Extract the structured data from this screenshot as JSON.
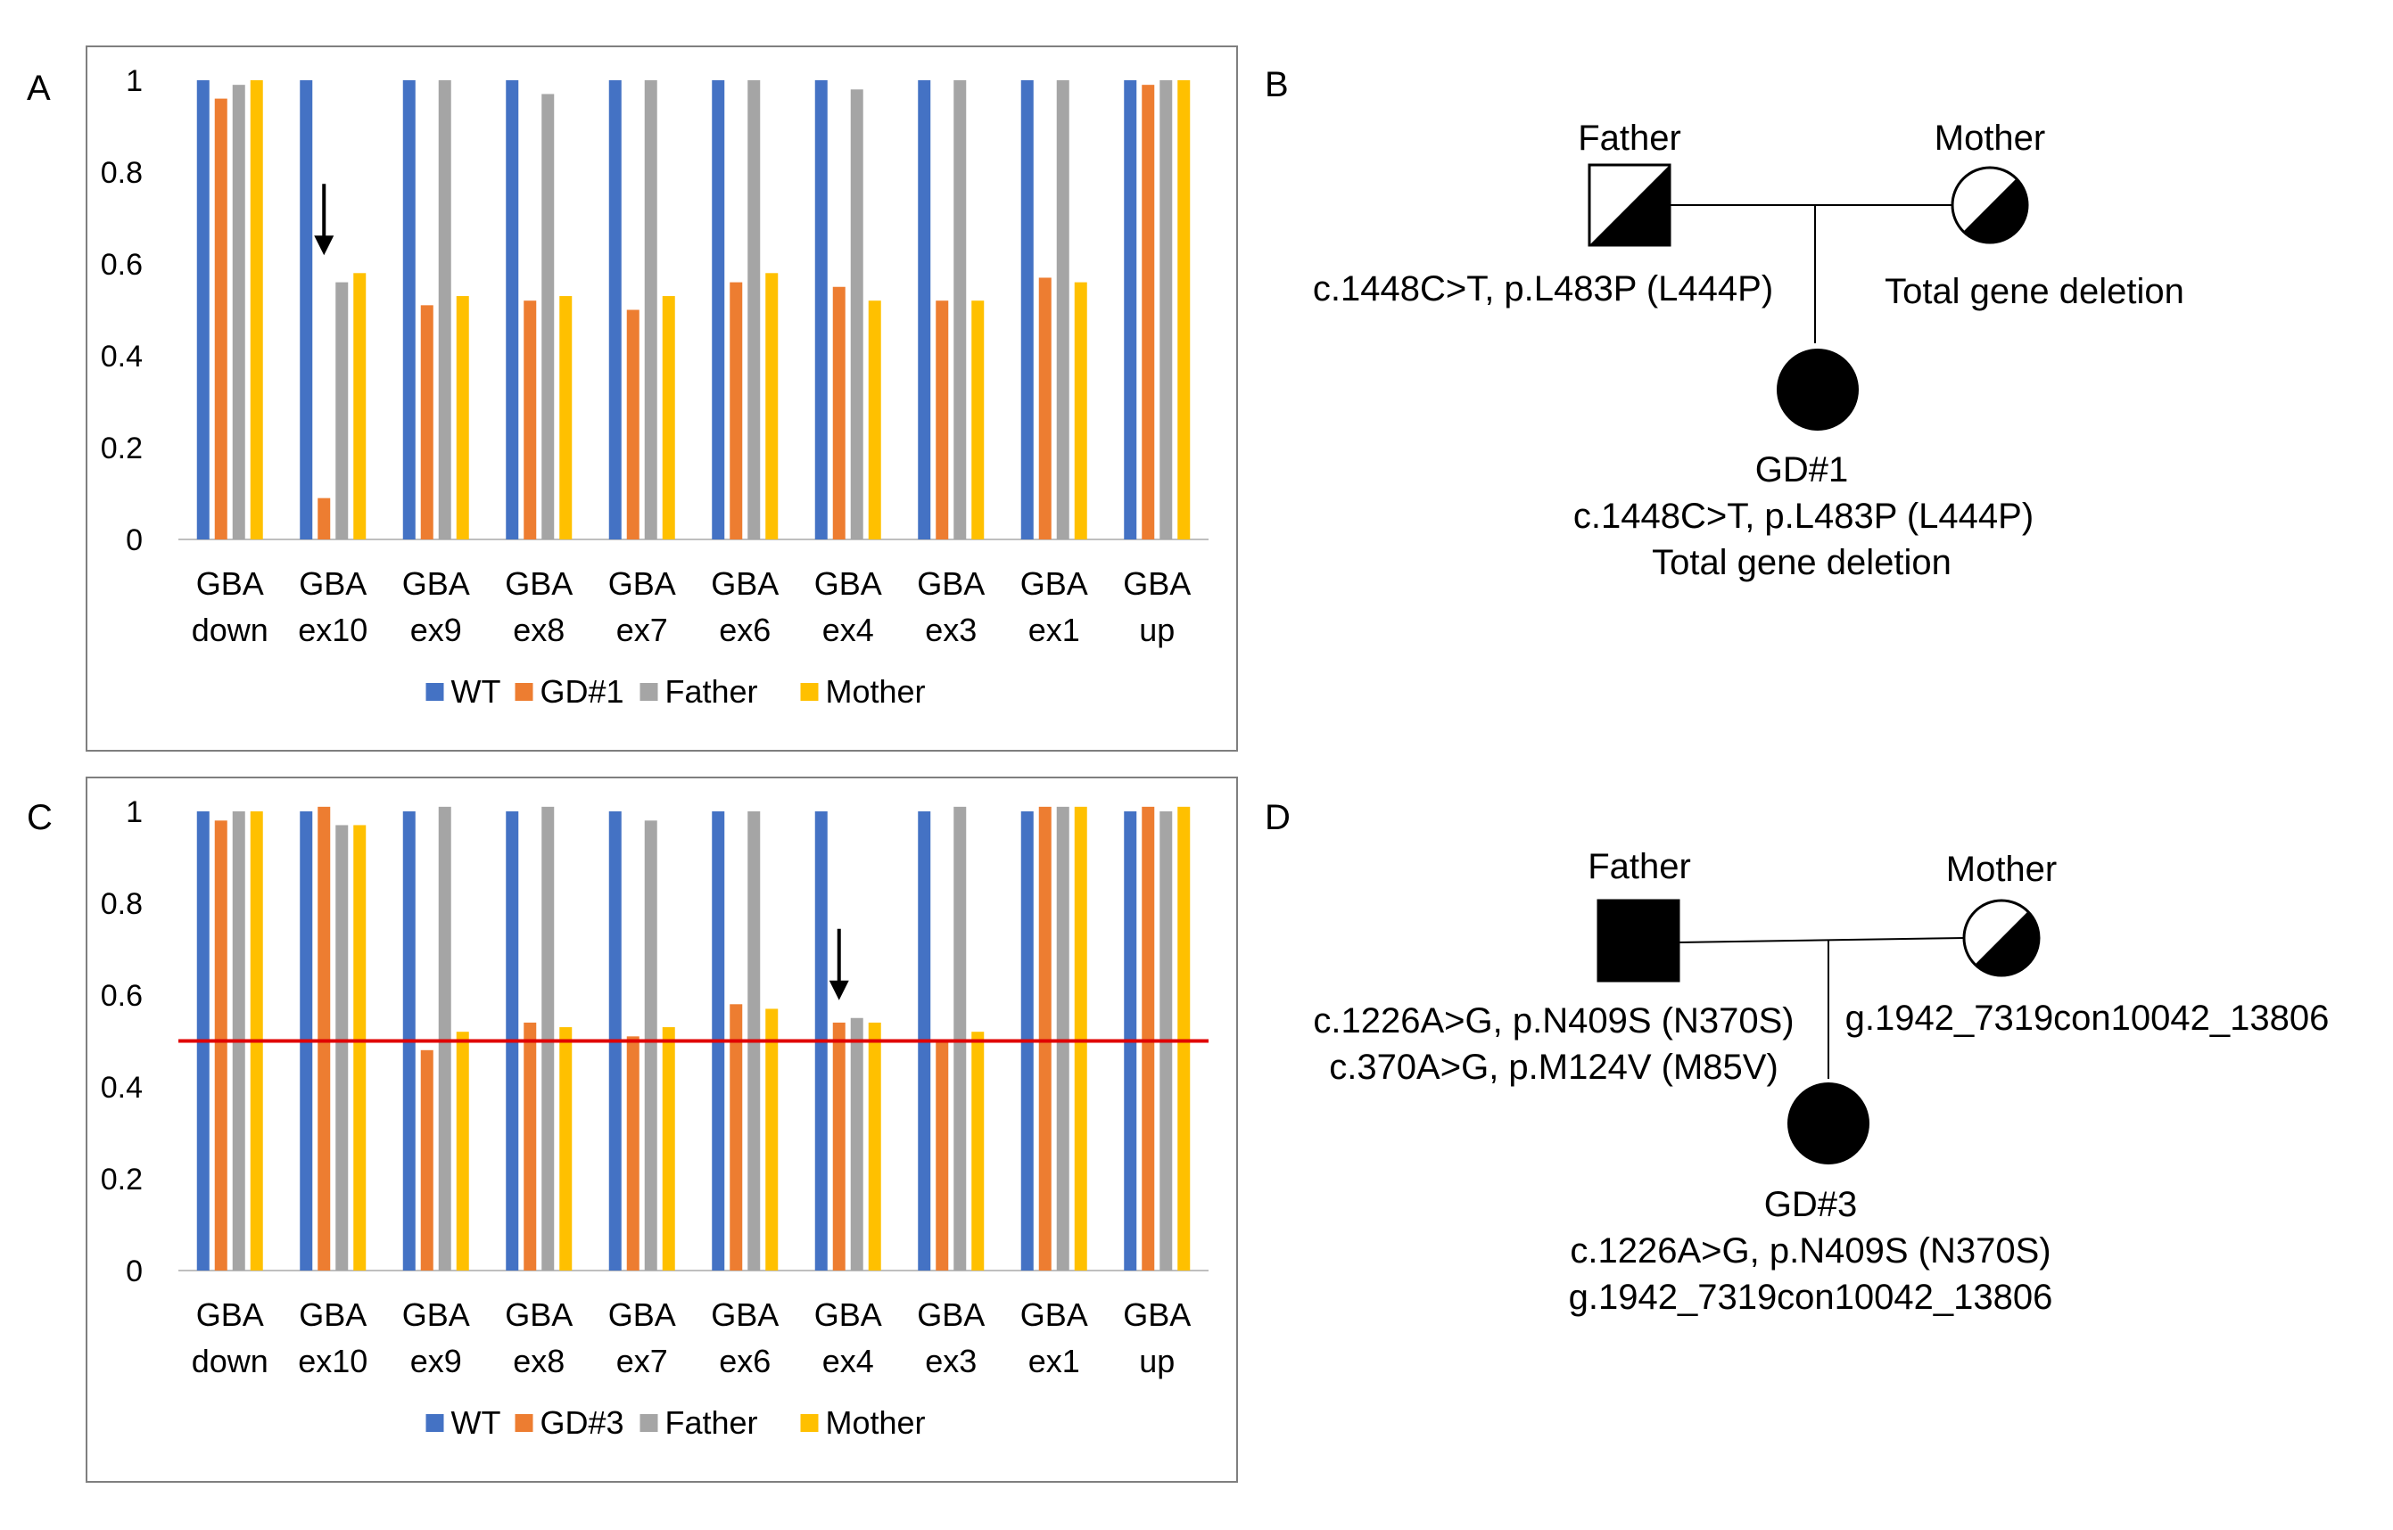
{
  "panels": {
    "A": "A",
    "B": "B",
    "C": "C",
    "D": "D"
  },
  "colors": {
    "WT": "#4472C4",
    "patient": "#ED7D31",
    "Father": "#A5A5A5",
    "Mother": "#FFC000",
    "threshold": "#E00000",
    "frame": "#7F7F7F",
    "axis": "#BFBFBF"
  },
  "chart_data": [
    {
      "panel": "A",
      "type": "bar",
      "title": "",
      "xlabel": "",
      "ylabel": "",
      "ylim": [
        0,
        1
      ],
      "yticks": [
        "0",
        "0.2",
        "0.4",
        "0.6",
        "0.8",
        "1"
      ],
      "categories": [
        [
          "GBA",
          "down"
        ],
        [
          "GBA",
          "ex10"
        ],
        [
          "GBA",
          "ex9"
        ],
        [
          "GBA",
          "ex8"
        ],
        [
          "GBA",
          "ex7"
        ],
        [
          "GBA",
          "ex6"
        ],
        [
          "GBA",
          "ex4"
        ],
        [
          "GBA",
          "ex3"
        ],
        [
          "GBA",
          "ex1"
        ],
        [
          "GBA",
          "up"
        ]
      ],
      "series": [
        {
          "name": "WT",
          "values": [
            1.0,
            1.0,
            1.0,
            1.0,
            1.0,
            1.0,
            1.0,
            1.0,
            1.0,
            1.0
          ]
        },
        {
          "name": "GD#1",
          "values": [
            0.96,
            0.09,
            0.51,
            0.52,
            0.5,
            0.56,
            0.55,
            0.52,
            0.57,
            0.99
          ]
        },
        {
          "name": "Father",
          "values": [
            0.99,
            0.56,
            1.0,
            0.97,
            1.0,
            1.0,
            0.98,
            1.0,
            1.0,
            1.0
          ]
        },
        {
          "name": "Mother",
          "values": [
            1.0,
            0.58,
            0.53,
            0.53,
            0.53,
            0.58,
            0.52,
            0.52,
            0.56,
            1.0
          ]
        }
      ],
      "arrow_category_index": 1,
      "threshold": null,
      "legend": "bottom"
    },
    {
      "panel": "C",
      "type": "bar",
      "title": "",
      "xlabel": "",
      "ylabel": "",
      "ylim": [
        0,
        1
      ],
      "yticks": [
        "0",
        "0.2",
        "0.4",
        "0.6",
        "0.8",
        "1"
      ],
      "categories": [
        [
          "GBA",
          "down"
        ],
        [
          "GBA",
          "ex10"
        ],
        [
          "GBA",
          "ex9"
        ],
        [
          "GBA",
          "ex8"
        ],
        [
          "GBA",
          "ex7"
        ],
        [
          "GBA",
          "ex6"
        ],
        [
          "GBA",
          "ex4"
        ],
        [
          "GBA",
          "ex3"
        ],
        [
          "GBA",
          "ex1"
        ],
        [
          "GBA",
          "up"
        ]
      ],
      "series": [
        {
          "name": "WT",
          "values": [
            1.0,
            1.0,
            1.0,
            1.0,
            1.0,
            1.0,
            1.0,
            1.0,
            1.0,
            1.0
          ]
        },
        {
          "name": "GD#3",
          "values": [
            0.98,
            1.01,
            0.48,
            0.54,
            0.51,
            0.58,
            0.54,
            0.5,
            1.01,
            1.01
          ]
        },
        {
          "name": "Father",
          "values": [
            1.0,
            0.97,
            1.01,
            1.01,
            0.98,
            1.0,
            0.55,
            1.01,
            1.01,
            1.0
          ]
        },
        {
          "name": "Mother",
          "values": [
            1.0,
            0.97,
            0.52,
            0.53,
            0.53,
            0.57,
            0.54,
            0.52,
            1.01,
            1.01
          ]
        }
      ],
      "arrow_category_index": 6,
      "threshold": 0.5,
      "legend": "bottom"
    }
  ],
  "pedigree_B": {
    "father_label": "Father",
    "mother_label": "Mother",
    "father_mutation": "c.1448C>T, p.L483P (L444P)",
    "mother_mutation": "Total gene deletion",
    "child_label": "GD#1",
    "child_line1": "c.1448C>T, p.L483P (L444P)",
    "child_line2": "Total gene deletion"
  },
  "pedigree_D": {
    "father_label": "Father",
    "mother_label": "Mother",
    "father_line1": "c.1226A>G, p.N409S (N370S)",
    "father_line2": "c.370A>G, p.M124V (M85V)",
    "mother_mutation": "g.1942_7319con10042_13806",
    "child_label": "GD#3",
    "child_line1": "c.1226A>G, p.N409S (N370S)",
    "child_line2": "g.1942_7319con10042_13806"
  }
}
